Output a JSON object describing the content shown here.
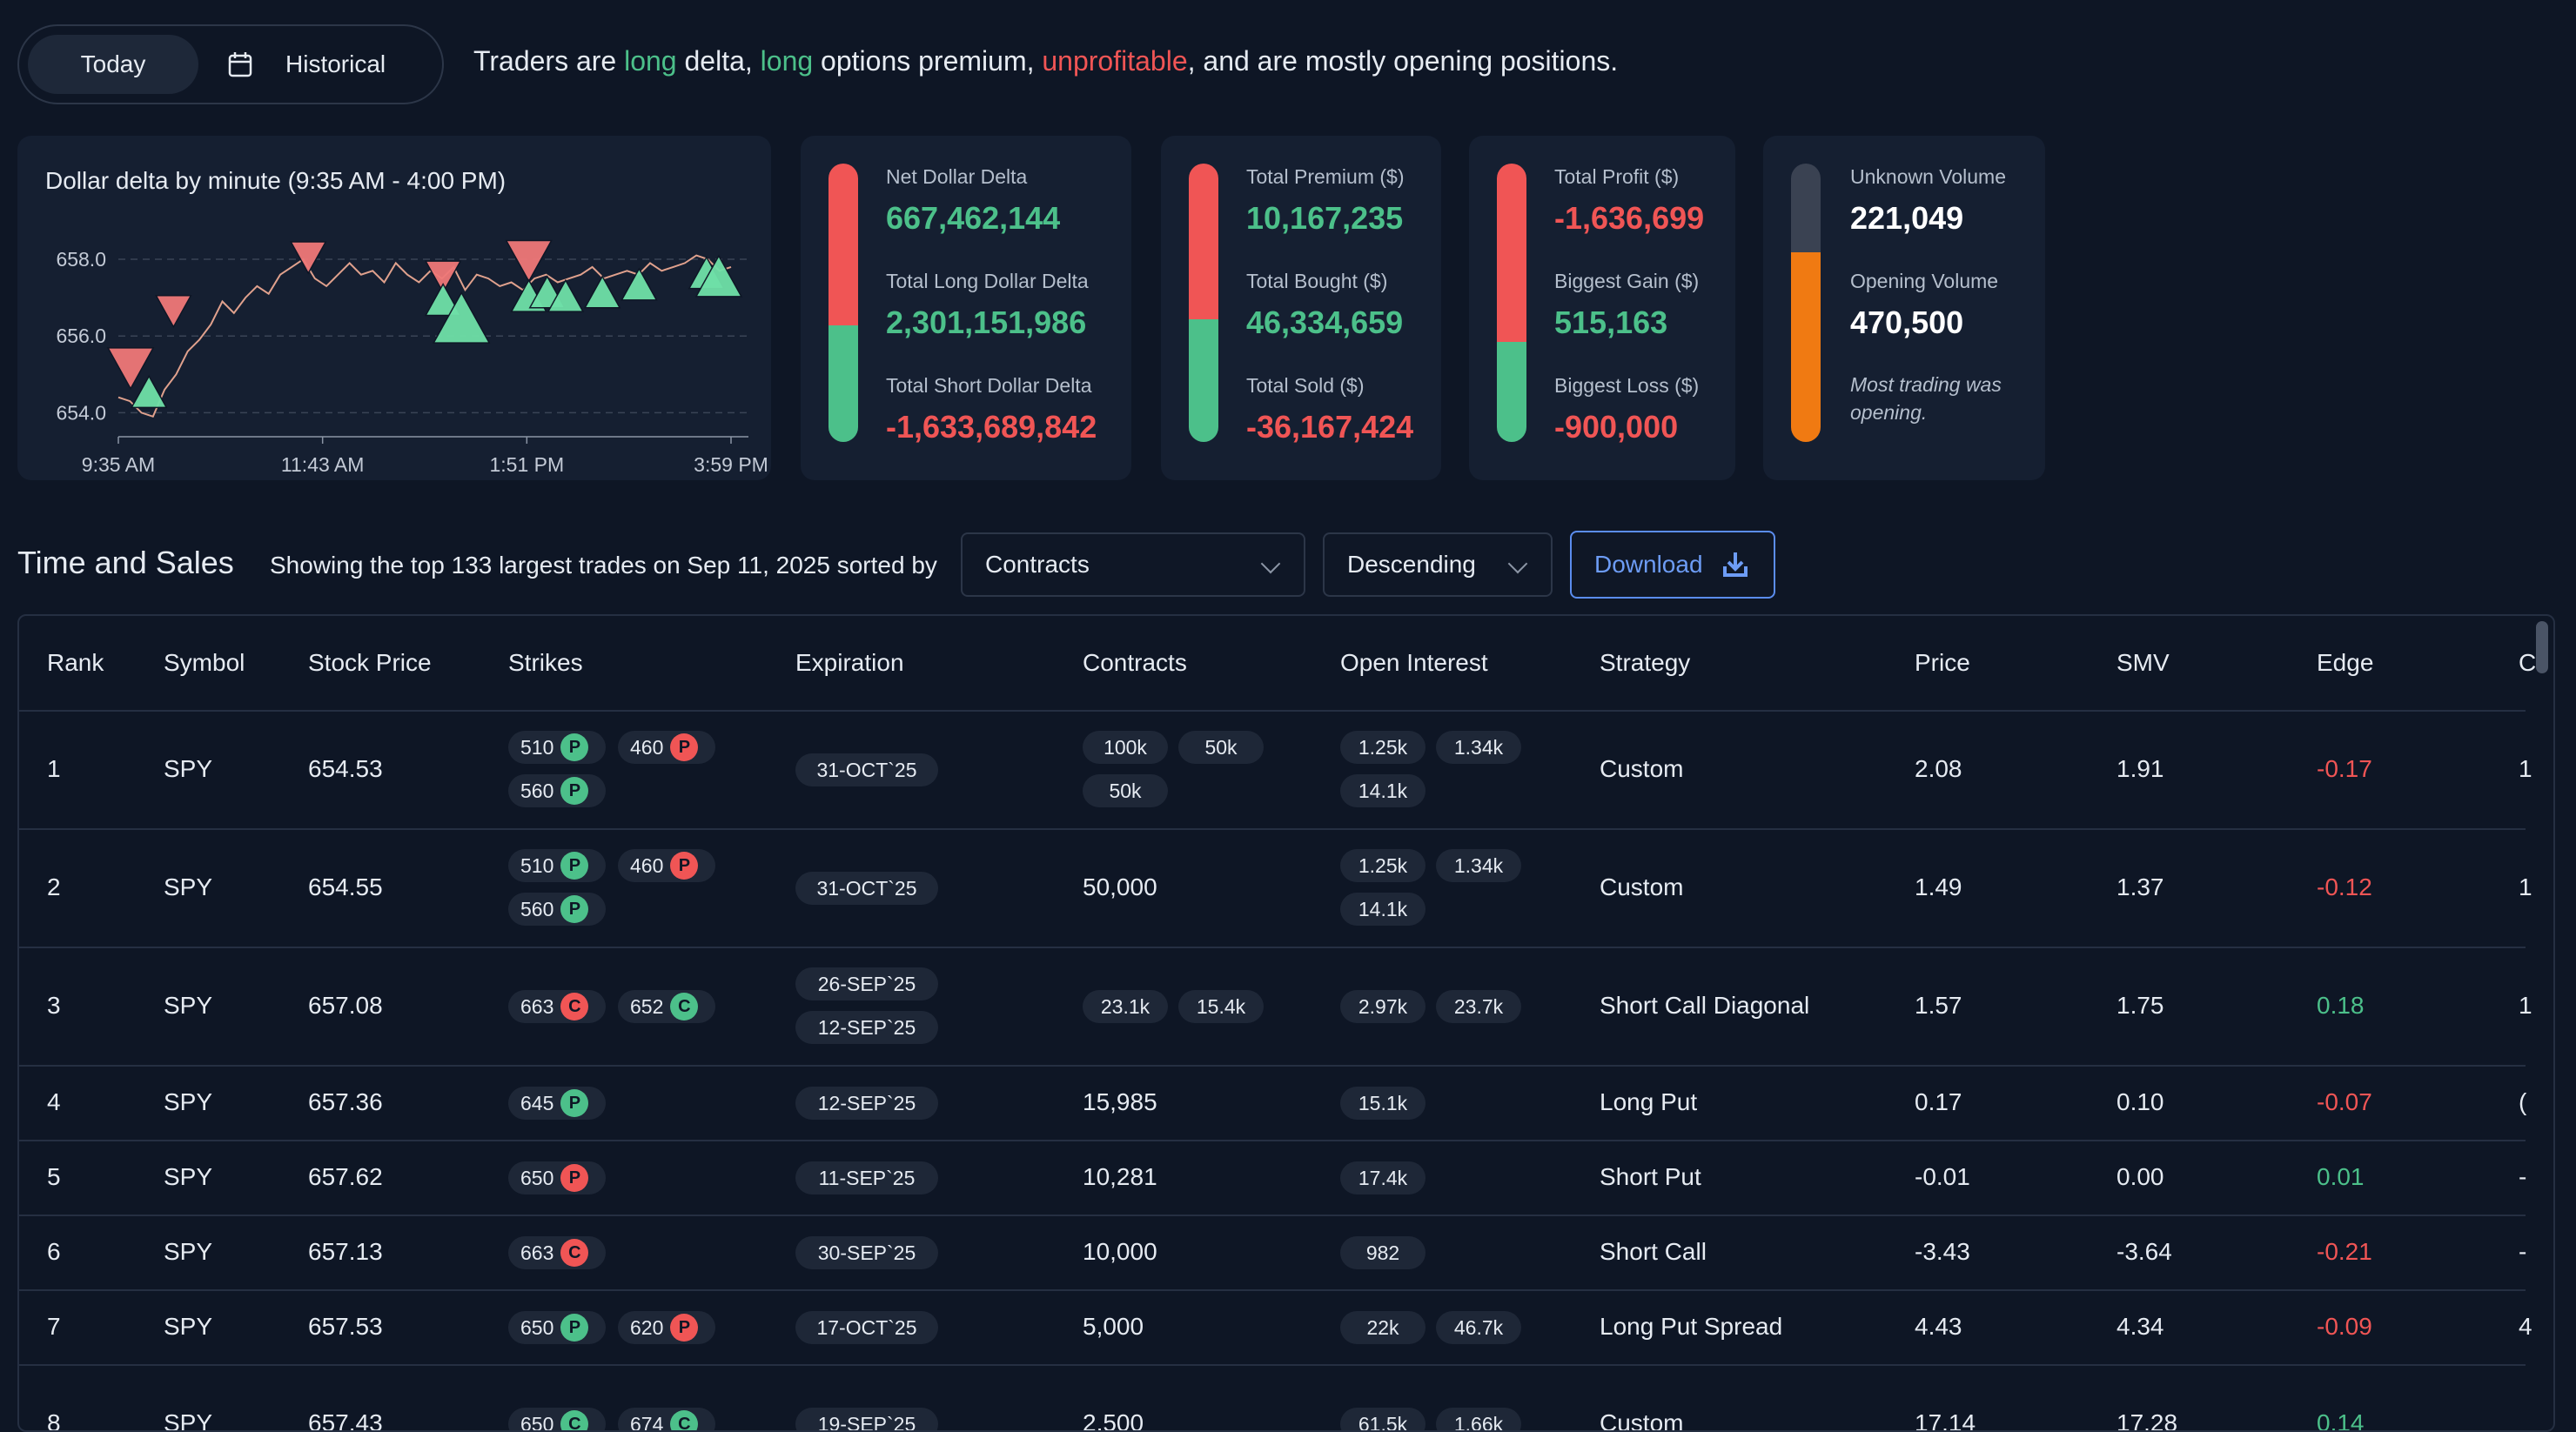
{
  "toggle": {
    "today_label": "Today",
    "historical_label": "Historical"
  },
  "summary": {
    "p1": "Traders are ",
    "delta_word": "long",
    "p2": " delta, ",
    "premium_word": "long",
    "p3": " options premium, ",
    "profit_word": "unprofitable",
    "p4": ", and are mostly opening positions."
  },
  "colors": {
    "green": "#4cc08a",
    "red": "#f05555",
    "orange": "#f07a12",
    "gray": "#3a4252",
    "bg": "#0e1625",
    "card": "#151f31"
  },
  "chart_data": {
    "type": "line",
    "title": "Dollar delta by minute (9:35 AM - 4:00 PM)",
    "y_tick_labels": [
      "658.0",
      "656.0",
      "654.0"
    ],
    "y_ticks": [
      658.0,
      656.0,
      654.0
    ],
    "x_tick_labels": [
      "9:35 AM",
      "11:43 AM",
      "1:51 PM",
      "3:59 PM"
    ],
    "ylim": [
      653.6,
      658.5
    ],
    "grid": true,
    "series": [
      {
        "values": [
          654.4,
          654.3,
          654.0,
          653.9,
          654.6,
          655.0,
          655.6,
          655.9,
          656.3,
          656.9,
          656.6,
          657.0,
          657.3,
          657.1,
          657.6,
          657.8,
          658.0,
          657.5,
          657.3,
          657.6,
          657.9,
          657.6,
          657.7,
          657.4,
          657.9,
          657.6,
          657.4,
          657.7,
          657.5,
          657.8,
          657.2,
          657.6,
          657.5,
          657.3,
          657.4,
          657.2,
          657.5,
          657.6,
          657.4,
          657.5,
          657.6,
          657.8,
          657.5,
          657.6,
          657.7,
          657.6,
          657.9,
          657.7,
          657.8,
          657.9,
          658.1,
          658.0,
          657.7,
          657.8
        ]
      }
    ],
    "markers": [
      {
        "x": 0.02,
        "y": 655.1,
        "dir": "down",
        "size": 3
      },
      {
        "x": 0.05,
        "y": 654.5,
        "dir": "up",
        "size": 2
      },
      {
        "x": 0.09,
        "y": 656.6,
        "dir": "down",
        "size": 2
      },
      {
        "x": 0.31,
        "y": 658.0,
        "dir": "down",
        "size": 2
      },
      {
        "x": 0.53,
        "y": 657.5,
        "dir": "down",
        "size": 2
      },
      {
        "x": 0.53,
        "y": 656.9,
        "dir": "up",
        "size": 2
      },
      {
        "x": 0.56,
        "y": 656.4,
        "dir": "up",
        "size": 4
      },
      {
        "x": 0.67,
        "y": 657.9,
        "dir": "down",
        "size": 3
      },
      {
        "x": 0.67,
        "y": 657.0,
        "dir": "up",
        "size": 2
      },
      {
        "x": 0.7,
        "y": 657.1,
        "dir": "up",
        "size": 2
      },
      {
        "x": 0.73,
        "y": 657.0,
        "dir": "up",
        "size": 2
      },
      {
        "x": 0.79,
        "y": 657.1,
        "dir": "up",
        "size": 2
      },
      {
        "x": 0.85,
        "y": 657.3,
        "dir": "up",
        "size": 2
      },
      {
        "x": 0.96,
        "y": 657.6,
        "dir": "up",
        "size": 2
      },
      {
        "x": 0.98,
        "y": 657.5,
        "dir": "up",
        "size": 3
      }
    ]
  },
  "stats": {
    "delta": {
      "l1": "Net Dollar Delta",
      "v1": "667,462,144",
      "l2": "Total Long Dollar Delta",
      "v2": "2,301,151,986",
      "l3": "Total Short Dollar Delta",
      "v3": "-1,633,689,842",
      "fill": 0.42
    },
    "premium": {
      "l1": "Total Premium ($)",
      "v1": "10,167,235",
      "l2": "Total Bought ($)",
      "v2": "46,334,659",
      "l3": "Total Sold ($)",
      "v3": "-36,167,424",
      "fill": 0.44
    },
    "profit": {
      "l1": "Total Profit ($)",
      "v1": "-1,636,699",
      "l2": "Biggest Gain ($)",
      "v2": "515,163",
      "l3": "Biggest Loss ($)",
      "v3": "-900,000",
      "fill": 0.36
    },
    "volume": {
      "l1": "Unknown Volume",
      "v1": "221,049",
      "l2": "Opening Volume",
      "v2": "470,500",
      "note": "Most trading was opening.",
      "fill": 0.68
    }
  },
  "time_sales": {
    "title": "Time and Sales",
    "description": "Showing the top 133 largest trades on Sep 11, 2025 sorted by",
    "sort_value": "Contracts",
    "order_value": "Descending",
    "download_label": "Download"
  },
  "table": {
    "headers": [
      "Rank",
      "Symbol",
      "Stock Price",
      "Strikes",
      "Expiration",
      "Contracts",
      "Open Interest",
      "Strategy",
      "Price",
      "SMV",
      "Edge",
      "C"
    ],
    "rows": [
      {
        "rank": "1",
        "symbol": "SPY",
        "stock_price": "654.53",
        "strikes": [
          {
            "k": "510",
            "t": "P",
            "c": "green"
          },
          {
            "k": "460",
            "t": "P",
            "c": "red"
          },
          {
            "k": "560",
            "t": "P",
            "c": "green"
          }
        ],
        "expirations": [
          "31-OCT`25"
        ],
        "contracts": [
          "100k",
          "50k",
          "50k"
        ],
        "contracts_plain": "",
        "oi": [
          "1.25k",
          "1.34k",
          "14.1k"
        ],
        "strategy": "Custom",
        "price": "2.08",
        "smv": "1.91",
        "edge": "-0.17",
        "edge_color": "red",
        "extra": "1"
      },
      {
        "rank": "2",
        "symbol": "SPY",
        "stock_price": "654.55",
        "strikes": [
          {
            "k": "510",
            "t": "P",
            "c": "green"
          },
          {
            "k": "460",
            "t": "P",
            "c": "red"
          },
          {
            "k": "560",
            "t": "P",
            "c": "green"
          }
        ],
        "expirations": [
          "31-OCT`25"
        ],
        "contracts": [],
        "contracts_plain": "50,000",
        "oi": [
          "1.25k",
          "1.34k",
          "14.1k"
        ],
        "strategy": "Custom",
        "price": "1.49",
        "smv": "1.37",
        "edge": "-0.12",
        "edge_color": "red",
        "extra": "1"
      },
      {
        "rank": "3",
        "symbol": "SPY",
        "stock_price": "657.08",
        "strikes": [
          {
            "k": "663",
            "t": "C",
            "c": "red"
          },
          {
            "k": "652",
            "t": "C",
            "c": "green"
          }
        ],
        "expirations": [
          "26-SEP`25",
          "12-SEP`25"
        ],
        "contracts": [
          "23.1k",
          "15.4k"
        ],
        "contracts_plain": "",
        "oi": [
          "2.97k",
          "23.7k"
        ],
        "strategy": "Short Call Diagonal",
        "price": "1.57",
        "smv": "1.75",
        "edge": "0.18",
        "edge_color": "green",
        "extra": "1"
      },
      {
        "rank": "4",
        "symbol": "SPY",
        "stock_price": "657.36",
        "strikes": [
          {
            "k": "645",
            "t": "P",
            "c": "green"
          }
        ],
        "expirations": [
          "12-SEP`25"
        ],
        "contracts": [],
        "contracts_plain": "15,985",
        "oi": [
          "15.1k"
        ],
        "strategy": "Long Put",
        "price": "0.17",
        "smv": "0.10",
        "edge": "-0.07",
        "edge_color": "red",
        "extra": "("
      },
      {
        "rank": "5",
        "symbol": "SPY",
        "stock_price": "657.62",
        "strikes": [
          {
            "k": "650",
            "t": "P",
            "c": "red"
          }
        ],
        "expirations": [
          "11-SEP`25"
        ],
        "contracts": [],
        "contracts_plain": "10,281",
        "oi": [
          "17.4k"
        ],
        "strategy": "Short Put",
        "price": "-0.01",
        "smv": "0.00",
        "edge": "0.01",
        "edge_color": "green",
        "extra": "-"
      },
      {
        "rank": "6",
        "symbol": "SPY",
        "stock_price": "657.13",
        "strikes": [
          {
            "k": "663",
            "t": "C",
            "c": "red"
          }
        ],
        "expirations": [
          "30-SEP`25"
        ],
        "contracts": [],
        "contracts_plain": "10,000",
        "oi": [
          "982"
        ],
        "strategy": "Short Call",
        "price": "-3.43",
        "smv": "-3.64",
        "edge": "-0.21",
        "edge_color": "red",
        "extra": "-"
      },
      {
        "rank": "7",
        "symbol": "SPY",
        "stock_price": "657.53",
        "strikes": [
          {
            "k": "650",
            "t": "P",
            "c": "green"
          },
          {
            "k": "620",
            "t": "P",
            "c": "red"
          }
        ],
        "expirations": [
          "17-OCT`25"
        ],
        "contracts": [],
        "contracts_plain": "5,000",
        "oi": [
          "22k",
          "46.7k"
        ],
        "strategy": "Long Put Spread",
        "price": "4.43",
        "smv": "4.34",
        "edge": "-0.09",
        "edge_color": "red",
        "extra": "4"
      },
      {
        "rank": "8",
        "symbol": "SPY",
        "stock_price": "657.43",
        "strikes": [
          {
            "k": "650",
            "t": "C",
            "c": "green"
          },
          {
            "k": "674",
            "t": "C",
            "c": "green"
          }
        ],
        "expirations": [
          "19-SEP`25"
        ],
        "contracts": [],
        "contracts_plain": "2,500",
        "oi": [
          "61.5k",
          "1.66k"
        ],
        "strategy": "Custom",
        "price": "17.14",
        "smv": "17.28",
        "edge": "0.14",
        "edge_color": "green",
        "extra": ""
      }
    ]
  }
}
